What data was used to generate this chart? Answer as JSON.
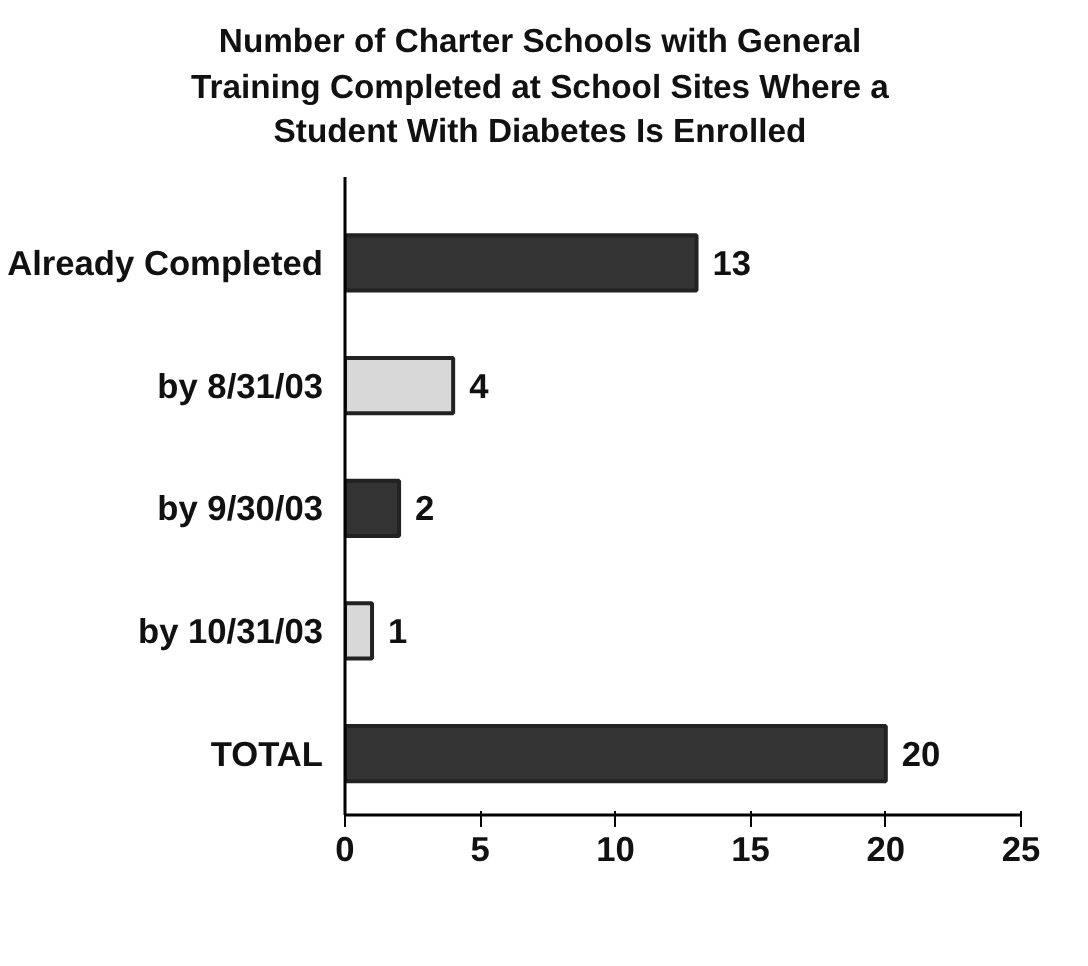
{
  "chart_data": {
    "type": "bar",
    "orientation": "horizontal",
    "title": "Number of Charter Schools with General Training Completed at School Sites Where a Student With Diabetes Is Enrolled",
    "categories": [
      "Already Completed",
      "by 8/31/03",
      "by 9/30/03",
      "by 10/31/03",
      "TOTAL"
    ],
    "values": [
      13,
      4,
      2,
      1,
      20
    ],
    "colors": [
      "#333333",
      "#d8d8d8",
      "#333333",
      "#d8d8d8",
      "#333333"
    ],
    "xlim": [
      0,
      25
    ],
    "xticks": [
      0,
      5,
      10,
      15,
      20,
      25
    ],
    "data_labels": true,
    "grid": false
  }
}
